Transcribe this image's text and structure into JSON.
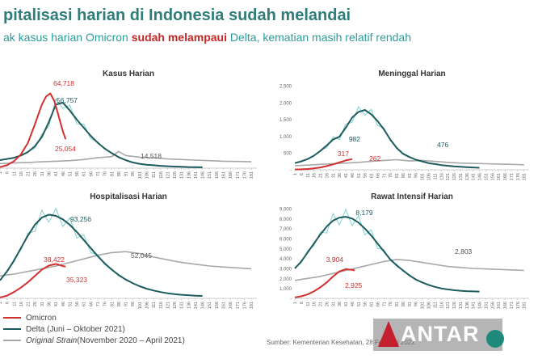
{
  "title": "pitalisasi harian di Indonesia sudah melandai",
  "subtitle": {
    "before": "ak kasus harian Omicron ",
    "highlight": "sudah melampaui",
    "after": " Delta, kematian masih relatif rendah"
  },
  "colors": {
    "omicron": "#d32f2f",
    "delta": "#1d5b5e",
    "original": "#a8a8a8",
    "raw": "#7fd1d0",
    "title": "#2e7d7a"
  },
  "legend": {
    "omicron": "Omicron",
    "delta": "Delta (Juni – Oktober 2021)",
    "original": "Original Strain",
    "original_rest": " (November 2020 – April 2021)"
  },
  "source": "Sumber: Kementerian Kesehatan, 28 Februari 2022",
  "logo": {
    "word": "ANTAR",
    "ministry": "KEMENTERIAN KESEHATAN REPUBLIK INDONESIA"
  },
  "chart_data": [
    {
      "type": "line",
      "title": "Kasus Harian",
      "x_ticks": [
        "1",
        "6",
        "11",
        "16",
        "21",
        "26",
        "31",
        "36",
        "41",
        "46",
        "51",
        "56",
        "61",
        "66",
        "71",
        "76",
        "81",
        "86",
        "91",
        "96",
        "101",
        "106",
        "111",
        "116",
        "121",
        "126",
        "131",
        "136",
        "141",
        "146",
        "151",
        "156",
        "161",
        "166",
        "171",
        "176",
        "181"
      ],
      "ylim": [
        0,
        70000
      ],
      "series": [
        {
          "name": "Omicron",
          "x": [
            1,
            6,
            11,
            16,
            21,
            26,
            31,
            34,
            37,
            40,
            43,
            46,
            48
          ],
          "values": [
            1000,
            2500,
            6000,
            12000,
            22000,
            38000,
            55000,
            62000,
            64718,
            58000,
            45000,
            32000,
            25054
          ]
        },
        {
          "name": "Delta (Juni – Oktober 2021)",
          "x": [
            1,
            6,
            11,
            16,
            21,
            26,
            31,
            36,
            41,
            46,
            51,
            56,
            61,
            66,
            71,
            76,
            81,
            86,
            91,
            96,
            101,
            106,
            111,
            116,
            121,
            126,
            131,
            136,
            141,
            146
          ],
          "values": [
            7000,
            8000,
            9000,
            11000,
            14000,
            19000,
            27000,
            40000,
            55000,
            56757,
            50000,
            42000,
            35000,
            28000,
            22000,
            17000,
            13000,
            9500,
            7000,
            5000,
            3800,
            3000,
            2500,
            2000,
            1700,
            1400,
            1200,
            1000,
            900,
            800
          ]
        },
        {
          "name": "Original Strain",
          "x": [
            1,
            11,
            21,
            31,
            41,
            51,
            61,
            71,
            81,
            86,
            91,
            101,
            111,
            121,
            131,
            141,
            151,
            161,
            171,
            181
          ],
          "values": [
            4000,
            4500,
            5000,
            5500,
            6000,
            6500,
            7500,
            9000,
            10000,
            14518,
            11000,
            9500,
            9000,
            8000,
            7500,
            7000,
            6500,
            6000,
            5800,
            5500
          ]
        }
      ],
      "labels": [
        "64,718",
        "56,757",
        "25,054",
        "14,518"
      ]
    },
    {
      "type": "line",
      "title": "Meninggal Harian",
      "y_ticks": [
        "-",
        "500",
        "1,000",
        "1,500",
        "2,000",
        "2,500"
      ],
      "x_ticks": [
        "1",
        "6",
        "11",
        "16",
        "21",
        "26",
        "31",
        "36",
        "41",
        "46",
        "51",
        "56",
        "61",
        "66",
        "71",
        "76",
        "81",
        "86",
        "91",
        "96",
        "101",
        "106",
        "111",
        "116",
        "121",
        "126",
        "131",
        "136",
        "141",
        "146",
        "151",
        "156",
        "161",
        "166",
        "171",
        "176",
        "181"
      ],
      "ylim": [
        0,
        2500
      ],
      "series": [
        {
          "name": "Omicron",
          "x": [
            1,
            6,
            11,
            16,
            21,
            26,
            31,
            36,
            41,
            46
          ],
          "values": [
            10,
            15,
            25,
            40,
            70,
            110,
            160,
            220,
            280,
            317
          ]
        },
        {
          "name": "Delta (Juni – Oktober 2021)",
          "x": [
            1,
            6,
            11,
            16,
            21,
            26,
            31,
            36,
            41,
            46,
            51,
            56,
            61,
            66,
            71,
            76,
            81,
            86,
            91,
            96,
            101,
            106,
            111,
            116,
            121,
            126,
            131,
            136,
            141,
            146
          ],
          "values": [
            200,
            250,
            320,
            420,
            560,
            720,
            900,
            982,
            1250,
            1550,
            1720,
            1780,
            1650,
            1450,
            1200,
            900,
            650,
            476,
            380,
            300,
            250,
            200,
            170,
            140,
            120,
            100,
            90,
            80,
            70,
            60
          ]
        },
        {
          "name": "Original Strain",
          "x": [
            1,
            11,
            21,
            31,
            41,
            51,
            61,
            71,
            81,
            91,
            101,
            111,
            121,
            131,
            141,
            151,
            161,
            171,
            181
          ],
          "values": [
            120,
            140,
            160,
            180,
            200,
            220,
            250,
            280,
            300,
            262,
            280,
            250,
            220,
            200,
            190,
            180,
            170,
            160,
            150
          ]
        }
      ],
      "labels": [
        "982",
        "476",
        "317",
        "262"
      ]
    },
    {
      "type": "line",
      "title": "Hospitalisasi Harian",
      "x_ticks": [
        "1",
        "6",
        "11",
        "16",
        "21",
        "26",
        "31",
        "36",
        "41",
        "46",
        "51",
        "56",
        "61",
        "66",
        "71",
        "76",
        "81",
        "86",
        "91",
        "96",
        "101",
        "106",
        "111",
        "116",
        "121",
        "126",
        "131",
        "136",
        "141",
        "146",
        "151",
        "156",
        "161",
        "166",
        "171",
        "176",
        "181"
      ],
      "ylim": [
        0,
        100000
      ],
      "series": [
        {
          "name": "Omicron",
          "x": [
            1,
            6,
            11,
            16,
            21,
            26,
            31,
            36,
            41,
            46,
            48
          ],
          "values": [
            1000,
            3000,
            7000,
            12000,
            18000,
            25000,
            32000,
            36500,
            38422,
            36000,
            35323
          ]
        },
        {
          "name": "Delta (Juni – Oktober 2021)",
          "x": [
            1,
            6,
            11,
            16,
            21,
            26,
            31,
            36,
            41,
            46,
            51,
            56,
            61,
            66,
            71,
            76,
            81,
            86,
            91,
            96,
            101,
            106,
            111,
            116,
            121,
            126,
            131,
            136,
            141,
            146
          ],
          "values": [
            20000,
            30000,
            42000,
            56000,
            70000,
            82000,
            90000,
            93256,
            92000,
            88000,
            82000,
            74000,
            65000,
            56000,
            47000,
            39000,
            32000,
            26000,
            21000,
            17000,
            13500,
            10800,
            8700,
            7000,
            5700,
            4700,
            4000,
            3500,
            3000,
            2700
          ]
        },
        {
          "name": "Original Strain",
          "x": [
            1,
            11,
            21,
            31,
            41,
            51,
            61,
            71,
            81,
            91,
            101,
            111,
            121,
            131,
            141,
            151,
            161,
            171,
            181
          ],
          "values": [
            25000,
            27000,
            30000,
            33000,
            36000,
            40000,
            44000,
            48000,
            51000,
            52045,
            50000,
            46000,
            43000,
            40000,
            38000,
            36000,
            35000,
            34000,
            33000
          ]
        }
      ],
      "labels": [
        "93,256",
        "38,422",
        "35,323",
        "52,045"
      ]
    },
    {
      "type": "line",
      "title": "Rawat Intensif Harian",
      "y_ticks": [
        "-",
        "1,000",
        "2,000",
        "3,000",
        "4,000",
        "5,000",
        "6,000",
        "7,000",
        "8,000",
        "9,000"
      ],
      "x_ticks": [
        "1",
        "6",
        "11",
        "16",
        "21",
        "26",
        "31",
        "36",
        "41",
        "46",
        "51",
        "56",
        "61",
        "66",
        "71",
        "76",
        "81",
        "86",
        "91",
        "96",
        "101",
        "106",
        "111",
        "116",
        "121",
        "126",
        "131",
        "136",
        "141",
        "146",
        "151",
        "156",
        "161",
        "166",
        "171",
        "176",
        "181"
      ],
      "ylim": [
        0,
        9000
      ],
      "series": [
        {
          "name": "Omicron",
          "x": [
            1,
            6,
            11,
            16,
            21,
            26,
            31,
            36,
            41,
            46,
            48
          ],
          "values": [
            100,
            200,
            400,
            700,
            1100,
            1600,
            2200,
            2700,
            2925,
            2850,
            2803
          ]
        },
        {
          "name": "Delta (Juni – Oktober 2021)",
          "x": [
            1,
            6,
            11,
            16,
            21,
            26,
            31,
            36,
            41,
            46,
            51,
            56,
            61,
            66,
            71,
            76,
            81,
            86,
            91,
            96,
            101,
            106,
            111,
            116,
            121,
            126,
            131,
            136,
            141,
            146
          ],
          "values": [
            3000,
            3700,
            4600,
            5500,
            6400,
            7200,
            7800,
            8100,
            8179,
            8000,
            7600,
            7000,
            6300,
            5500,
            4700,
            3904,
            3300,
            2800,
            2300,
            1900,
            1600,
            1350,
            1150,
            1000,
            900,
            820,
            760,
            720,
            700,
            680
          ]
        },
        {
          "name": "Original Strain",
          "x": [
            1,
            11,
            21,
            31,
            41,
            51,
            61,
            71,
            81,
            91,
            101,
            111,
            121,
            131,
            141,
            151,
            161,
            171,
            181
          ],
          "values": [
            1800,
            2000,
            2200,
            2500,
            2800,
            3100,
            3400,
            3700,
            3904,
            3800,
            3600,
            3400,
            3200,
            3100,
            3000,
            2950,
            2900,
            2850,
            2800
          ]
        }
      ],
      "labels": [
        "8,179",
        "3,904",
        "2,925",
        "2,803"
      ]
    }
  ]
}
